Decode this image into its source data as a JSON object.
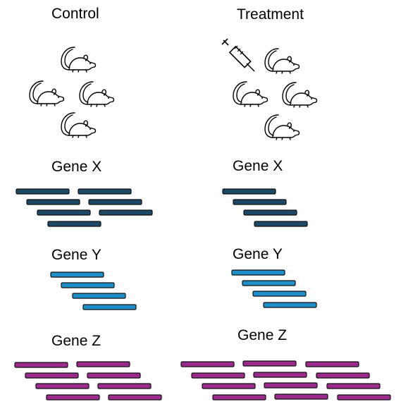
{
  "diagram": {
    "groups": [
      {
        "title": "Control",
        "mouse_count": 4,
        "syringe": false,
        "genes": [
          {
            "label": "Gene X",
            "bar_count": 7,
            "color": "#1c4a66"
          },
          {
            "label": "Gene Y",
            "bar_count": 4,
            "color": "#1f8fc9"
          },
          {
            "label": "Gene Z",
            "bar_count": 8,
            "color": "#9b2a8c"
          }
        ]
      },
      {
        "title": "Treatment",
        "mouse_count": 4,
        "syringe": true,
        "genes": [
          {
            "label": "Gene X",
            "bar_count": 4,
            "color": "#1c4a66"
          },
          {
            "label": "Gene Y",
            "bar_count": 4,
            "color": "#1f8fc9"
          },
          {
            "label": "Gene Z",
            "bar_count": 12,
            "color": "#9b2a8c"
          }
        ]
      }
    ],
    "icons": {
      "animal": "mouse-icon",
      "treatment": "syringe-icon"
    }
  }
}
